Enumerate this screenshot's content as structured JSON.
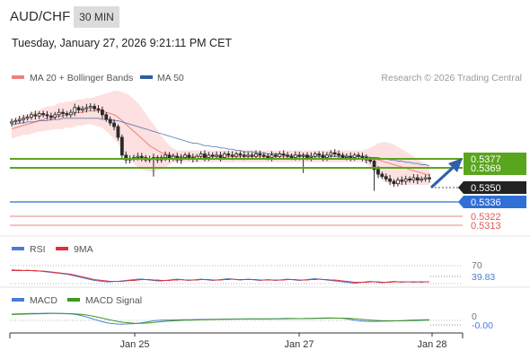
{
  "header": {
    "pair": "AUD/CHF",
    "timeframe": "30 MIN",
    "datetime": "Tuesday, January 27, 2026 9:21:11 PM CET"
  },
  "colors": {
    "ma20": "#f08080",
    "bollinger_fill": "#fde0e0",
    "ma50": "#2f5d9e",
    "resistance": "#5aa51e",
    "support": "#2f6fd6",
    "support_red": "#e05a5a",
    "rsi": "#4a7bd6",
    "rsi_9ma": "#e0303a",
    "macd": "#4a7bd6",
    "macd_signal": "#3e9a1e",
    "candle": "#2a2a2a",
    "arrow": "#2f5fa8"
  },
  "chart_data": [
    {
      "type": "candlestick",
      "panel": "price",
      "legend": [
        "MA 20 + Bollinger Bands",
        "MA 50"
      ],
      "legend_placement": "top-left",
      "attribution": "Research © 2026 Trading Central",
      "x_tick_labels": [
        "Jan 25",
        "Jan 27",
        "Jan 28"
      ],
      "price_labels": [
        {
          "value": "0.5377",
          "role": "resistance"
        },
        {
          "value": "0.5369",
          "role": "resistance"
        },
        {
          "value": "0.5350",
          "role": "last-price"
        },
        {
          "value": "0.5336",
          "role": "support"
        },
        {
          "value": "0.5322",
          "role": "support"
        },
        {
          "value": "0.5313",
          "role": "support"
        }
      ],
      "levels": [
        0.5377,
        0.5369,
        0.5336,
        0.5322,
        0.5313
      ],
      "last_price": 0.535,
      "ylim": [
        0.5308,
        0.5425
      ],
      "close": [
        0.5398,
        0.5399,
        0.54,
        0.5401,
        0.5402,
        0.5404,
        0.5403,
        0.5405,
        0.5404,
        0.5403,
        0.5402,
        0.5404,
        0.5406,
        0.5405,
        0.5404,
        0.5406,
        0.541,
        0.5408,
        0.5409,
        0.541,
        0.5411,
        0.5409,
        0.5408,
        0.5404,
        0.54,
        0.5397,
        0.5394,
        0.5385,
        0.537,
        0.5366,
        0.5367,
        0.5368,
        0.5369,
        0.5368,
        0.5366,
        0.5367,
        0.5368,
        0.5366,
        0.5368,
        0.537,
        0.5367,
        0.5369,
        0.5366,
        0.5368,
        0.537,
        0.5368,
        0.5367,
        0.5369,
        0.5371,
        0.5368,
        0.537,
        0.5369,
        0.537,
        0.5368,
        0.5371,
        0.537,
        0.5369,
        0.5371,
        0.537,
        0.5369,
        0.537,
        0.5369,
        0.5371,
        0.537,
        0.5369,
        0.5368,
        0.537,
        0.5369,
        0.5371,
        0.537,
        0.5369,
        0.5368,
        0.537,
        0.5369,
        0.537,
        0.5368,
        0.5369,
        0.5371,
        0.537,
        0.5368,
        0.537,
        0.5372,
        0.5371,
        0.537,
        0.5368,
        0.5369,
        0.5368,
        0.537,
        0.5369,
        0.5368,
        0.5366,
        0.5365,
        0.5358,
        0.5354,
        0.5352,
        0.535,
        0.5348,
        0.5346,
        0.5349,
        0.5348,
        0.535,
        0.5349,
        0.5351,
        0.5349,
        0.535,
        0.5351,
        0.535
      ],
      "ma20": [
        0.5392,
        0.5393,
        0.5394,
        0.5395,
        0.5396,
        0.5397,
        0.5398,
        0.5399,
        0.54,
        0.5401,
        0.5401,
        0.5402,
        0.5403,
        0.5403,
        0.5404,
        0.5404,
        0.5405,
        0.5406,
        0.5406,
        0.5407,
        0.5407,
        0.5407,
        0.5407,
        0.5407,
        0.5406,
        0.5405,
        0.5404,
        0.5402,
        0.5399,
        0.5396,
        0.5393,
        0.539,
        0.5387,
        0.5384,
        0.5381,
        0.5378,
        0.5376,
        0.5374,
        0.5372,
        0.5371,
        0.537,
        0.537,
        0.5369,
        0.5369,
        0.5369,
        0.5369,
        0.5369,
        0.5369,
        0.5369,
        0.5369,
        0.5369,
        0.5369,
        0.5369,
        0.5369,
        0.5369,
        0.5369,
        0.5369,
        0.5369,
        0.5369,
        0.5369,
        0.5369,
        0.5369,
        0.5369,
        0.5369,
        0.5369,
        0.5369,
        0.5369,
        0.5369,
        0.5369,
        0.5369,
        0.5369,
        0.5369,
        0.5369,
        0.5369,
        0.5369,
        0.5369,
        0.5369,
        0.5369,
        0.5369,
        0.5369,
        0.5369,
        0.5369,
        0.5369,
        0.5369,
        0.5369,
        0.5369,
        0.5369,
        0.5369,
        0.5369,
        0.5369,
        0.5369,
        0.5368,
        0.5367,
        0.5366,
        0.5365,
        0.5364,
        0.5363,
        0.5362,
        0.5361,
        0.536,
        0.5359,
        0.5358,
        0.5357,
        0.5356,
        0.5355,
        0.5354,
        0.5353
      ],
      "ma50": [
        0.5396,
        0.5396,
        0.5397,
        0.5397,
        0.5398,
        0.5398,
        0.5398,
        0.5399,
        0.5399,
        0.5399,
        0.54,
        0.54,
        0.54,
        0.5401,
        0.5401,
        0.5401,
        0.5401,
        0.5401,
        0.5401,
        0.5401,
        0.5401,
        0.5401,
        0.5401,
        0.54,
        0.54,
        0.54,
        0.5399,
        0.5399,
        0.5398,
        0.5397,
        0.5396,
        0.5395,
        0.5394,
        0.5393,
        0.5392,
        0.5391,
        0.539,
        0.5389,
        0.5388,
        0.5387,
        0.5386,
        0.5385,
        0.5384,
        0.5383,
        0.5382,
        0.5381,
        0.538,
        0.538,
        0.5379,
        0.5378,
        0.5378,
        0.5377,
        0.5377,
        0.5376,
        0.5376,
        0.5375,
        0.5375,
        0.5374,
        0.5374,
        0.5373,
        0.5373,
        0.5373,
        0.5372,
        0.5372,
        0.5372,
        0.5371,
        0.5371,
        0.5371,
        0.5371,
        0.537,
        0.537,
        0.537,
        0.537,
        0.537,
        0.537,
        0.537,
        0.5369,
        0.5369,
        0.5369,
        0.5369,
        0.5369,
        0.5369,
        0.5369,
        0.5369,
        0.5369,
        0.5369,
        0.5369,
        0.5369,
        0.5369,
        0.5369,
        0.5369,
        0.5368,
        0.5368,
        0.5368,
        0.5367,
        0.5367,
        0.5366,
        0.5366,
        0.5365,
        0.5365,
        0.5364,
        0.5364,
        0.5363,
        0.5363,
        0.5362,
        0.5362,
        0.5361
      ],
      "bb_width": [
        0.0008,
        0.0008,
        0.0008,
        0.0008,
        0.0009,
        0.0009,
        0.0009,
        0.0009,
        0.001,
        0.001,
        0.001,
        0.001,
        0.0011,
        0.0011,
        0.0011,
        0.0011,
        0.0011,
        0.0011,
        0.0011,
        0.0011,
        0.0011,
        0.0012,
        0.0013,
        0.0014,
        0.0016,
        0.0018,
        0.002,
        0.0022,
        0.0024,
        0.0026,
        0.0027,
        0.0027,
        0.0027,
        0.0026,
        0.0024,
        0.0022,
        0.002,
        0.0017,
        0.0014,
        0.0011,
        0.0008,
        0.0006,
        0.0005,
        0.0005,
        0.0005,
        0.0005,
        0.0005,
        0.0005,
        0.0005,
        0.0005,
        0.0005,
        0.0005,
        0.0005,
        0.0005,
        0.0005,
        0.0005,
        0.0005,
        0.0005,
        0.0005,
        0.0005,
        0.0005,
        0.0005,
        0.0005,
        0.0005,
        0.0005,
        0.0005,
        0.0005,
        0.0005,
        0.0005,
        0.0005,
        0.0005,
        0.0005,
        0.0005,
        0.0005,
        0.0005,
        0.0005,
        0.0005,
        0.0005,
        0.0005,
        0.0005,
        0.0005,
        0.0005,
        0.0005,
        0.0005,
        0.0005,
        0.0005,
        0.0005,
        0.0005,
        0.0005,
        0.0005,
        0.0006,
        0.0008,
        0.0011,
        0.0014,
        0.0016,
        0.0017,
        0.0017,
        0.0017,
        0.0016,
        0.0015,
        0.0014,
        0.0013,
        0.0012,
        0.0011,
        0.001,
        0.0009,
        0.0008
      ]
    },
    {
      "type": "line",
      "panel": "rsi",
      "legend": [
        "RSI",
        "9MA"
      ],
      "legend_placement": "top-left",
      "tick_labels": [
        "70"
      ],
      "last_value_label": "39.83",
      "ylim": [
        20,
        80
      ],
      "rsi": [
        67,
        66,
        66,
        65,
        66,
        65,
        64,
        64,
        63,
        62,
        61,
        60,
        59,
        58,
        57,
        55,
        53,
        51,
        49,
        47,
        45,
        43,
        42,
        41,
        40,
        40,
        41,
        41,
        42,
        43,
        44,
        45,
        46,
        46,
        45,
        44,
        43,
        42,
        42,
        43,
        44,
        45,
        46,
        45,
        44,
        43,
        44,
        45,
        46,
        45,
        44,
        43,
        44,
        45,
        46,
        47,
        46,
        45,
        44,
        45,
        46,
        45,
        44,
        43,
        44,
        45,
        44,
        43,
        44,
        45,
        46,
        45,
        44,
        43,
        44,
        45,
        46,
        47,
        46,
        45,
        44,
        43,
        42,
        41,
        40,
        39,
        38,
        37,
        38,
        39,
        40,
        41,
        40,
        39,
        38,
        39,
        40,
        41,
        40,
        39,
        40,
        40,
        39,
        40,
        39,
        40,
        40
      ],
      "ma9": [
        65,
        65,
        65,
        65,
        65,
        65,
        65,
        64,
        64,
        63,
        62,
        61,
        60,
        59,
        58,
        57,
        55,
        53,
        51,
        49,
        47,
        45,
        44,
        43,
        42,
        41,
        41,
        41,
        41,
        42,
        43,
        43,
        44,
        45,
        45,
        45,
        44,
        44,
        43,
        43,
        43,
        44,
        44,
        45,
        44,
        44,
        44,
        44,
        45,
        45,
        45,
        44,
        44,
        44,
        45,
        45,
        46,
        45,
        45,
        45,
        45,
        45,
        45,
        44,
        44,
        44,
        44,
        44,
        44,
        44,
        45,
        45,
        45,
        44,
        44,
        44,
        45,
        45,
        46,
        45,
        45,
        44,
        44,
        43,
        42,
        41,
        40,
        39,
        39,
        39,
        39,
        40,
        40,
        40,
        39,
        39,
        39,
        40,
        40,
        40,
        40,
        40,
        40,
        40,
        40,
        40,
        40
      ]
    },
    {
      "type": "line",
      "panel": "macd",
      "legend": [
        "MACD",
        "MACD Signal"
      ],
      "legend_placement": "top-left",
      "tick_labels": [
        "0"
      ],
      "last_value_label": "-0.00",
      "ylim": [
        -0.0012,
        0.001
      ],
      "macd": [
        0.0006,
        0.00062,
        0.00064,
        0.00065,
        0.00066,
        0.00067,
        0.00068,
        0.00068,
        0.00069,
        0.0007,
        0.0007,
        0.00069,
        0.00068,
        0.00066,
        0.00064,
        0.00062,
        0.00058,
        0.0005,
        0.0004,
        0.00028,
        0.00015,
        2e-05,
        -0.00012,
        -0.00025,
        -0.00035,
        -0.00043,
        -0.00048,
        -0.0005,
        -0.00051,
        -0.0005,
        -0.00048,
        -0.00046,
        -0.00042,
        -0.00036,
        -0.0003,
        -0.00022,
        -0.00014,
        -0.0001,
        -8e-05,
        -6e-05,
        -6e-05,
        -5e-05,
        -4e-05,
        -3e-05,
        -2e-05,
        -2e-05,
        -1e-05,
        0.0,
        1e-05,
        1e-05,
        2e-05,
        3e-05,
        3e-05,
        4e-05,
        4e-05,
        5e-05,
        5e-05,
        6e-05,
        6e-05,
        6e-05,
        7e-05,
        7e-05,
        7e-05,
        6e-05,
        6e-05,
        7e-05,
        8e-05,
        9e-05,
        0.0001,
        0.00011,
        0.00012,
        0.00012,
        0.00011,
        0.0001,
        0.00011,
        0.00012,
        0.00013,
        0.00014,
        0.00015,
        0.00016,
        0.00017,
        0.00017,
        0.00016,
        0.00015,
        0.00012,
        8e-05,
        0.0,
        -8e-05,
        -0.00014,
        -0.00018,
        -0.0002,
        -0.00021,
        -0.00021,
        -0.0002,
        -0.00019,
        -0.00018,
        -0.00017,
        -0.00016,
        -0.00014,
        -0.00012,
        -0.0001,
        -8e-05,
        -6e-05,
        -5e-05,
        -4e-05,
        -3e-05,
        -2e-05
      ],
      "signal": [
        0.00055,
        0.00057,
        0.00059,
        0.0006,
        0.00061,
        0.00062,
        0.00063,
        0.00064,
        0.00065,
        0.00066,
        0.00067,
        0.00067,
        0.00067,
        0.00067,
        0.00066,
        0.00065,
        0.00063,
        0.0006,
        0.00056,
        0.0005,
        0.00043,
        0.00035,
        0.00025,
        0.00015,
        5e-05,
        -5e-05,
        -0.00014,
        -0.00022,
        -0.00029,
        -0.00034,
        -0.00038,
        -0.00041,
        -0.00042,
        -0.00042,
        -0.0004,
        -0.00037,
        -0.00033,
        -0.00028,
        -0.00024,
        -0.0002,
        -0.00017,
        -0.00014,
        -0.00012,
        -0.0001,
        -8e-05,
        -7e-05,
        -6e-05,
        -4e-05,
        -3e-05,
        -2e-05,
        -1e-05,
        0.0,
        1e-05,
        2e-05,
        3e-05,
        3e-05,
        4e-05,
        4e-05,
        5e-05,
        5e-05,
        5e-05,
        6e-05,
        6e-05,
        6e-05,
        6e-05,
        6e-05,
        7e-05,
        7e-05,
        8e-05,
        8e-05,
        9e-05,
        0.0001,
        0.0001,
        0.0001,
        0.0001,
        0.00011,
        0.00011,
        0.00012,
        0.00013,
        0.00013,
        0.00014,
        0.00015,
        0.00015,
        0.00015,
        0.00015,
        0.00014,
        0.00012,
        9e-05,
        5e-05,
        1e-05,
        -3e-05,
        -6e-05,
        -9e-05,
        -0.00011,
        -0.00013,
        -0.00014,
        -0.00015,
        -0.00015,
        -0.00015,
        -0.00015,
        -0.00014,
        -0.00013,
        -0.00012,
        -0.00011,
        -0.0001,
        -8e-05,
        -7e-05
      ]
    }
  ]
}
